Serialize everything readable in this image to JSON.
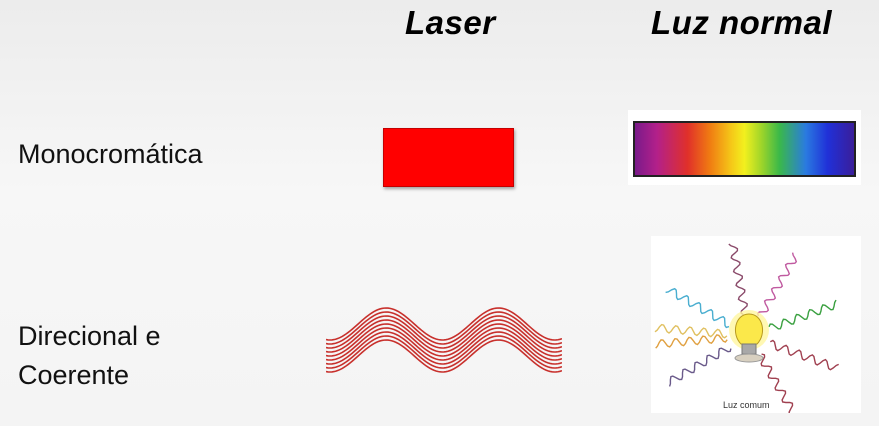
{
  "headers": {
    "laser": "Laser",
    "normal": "Luz normal"
  },
  "rows": [
    {
      "label": "Monocromática"
    },
    {
      "label_line1": "Direcional e",
      "label_line2": "Coerente"
    }
  ],
  "bulb_caption": "Luz comum",
  "colors": {
    "laser_red": "#ff0000",
    "wave_red": "#c8302c",
    "spectrum": [
      "#7a1a8a",
      "#e0302a",
      "#f07a12",
      "#f2f01e",
      "#3ab84a",
      "#2030d8"
    ]
  }
}
